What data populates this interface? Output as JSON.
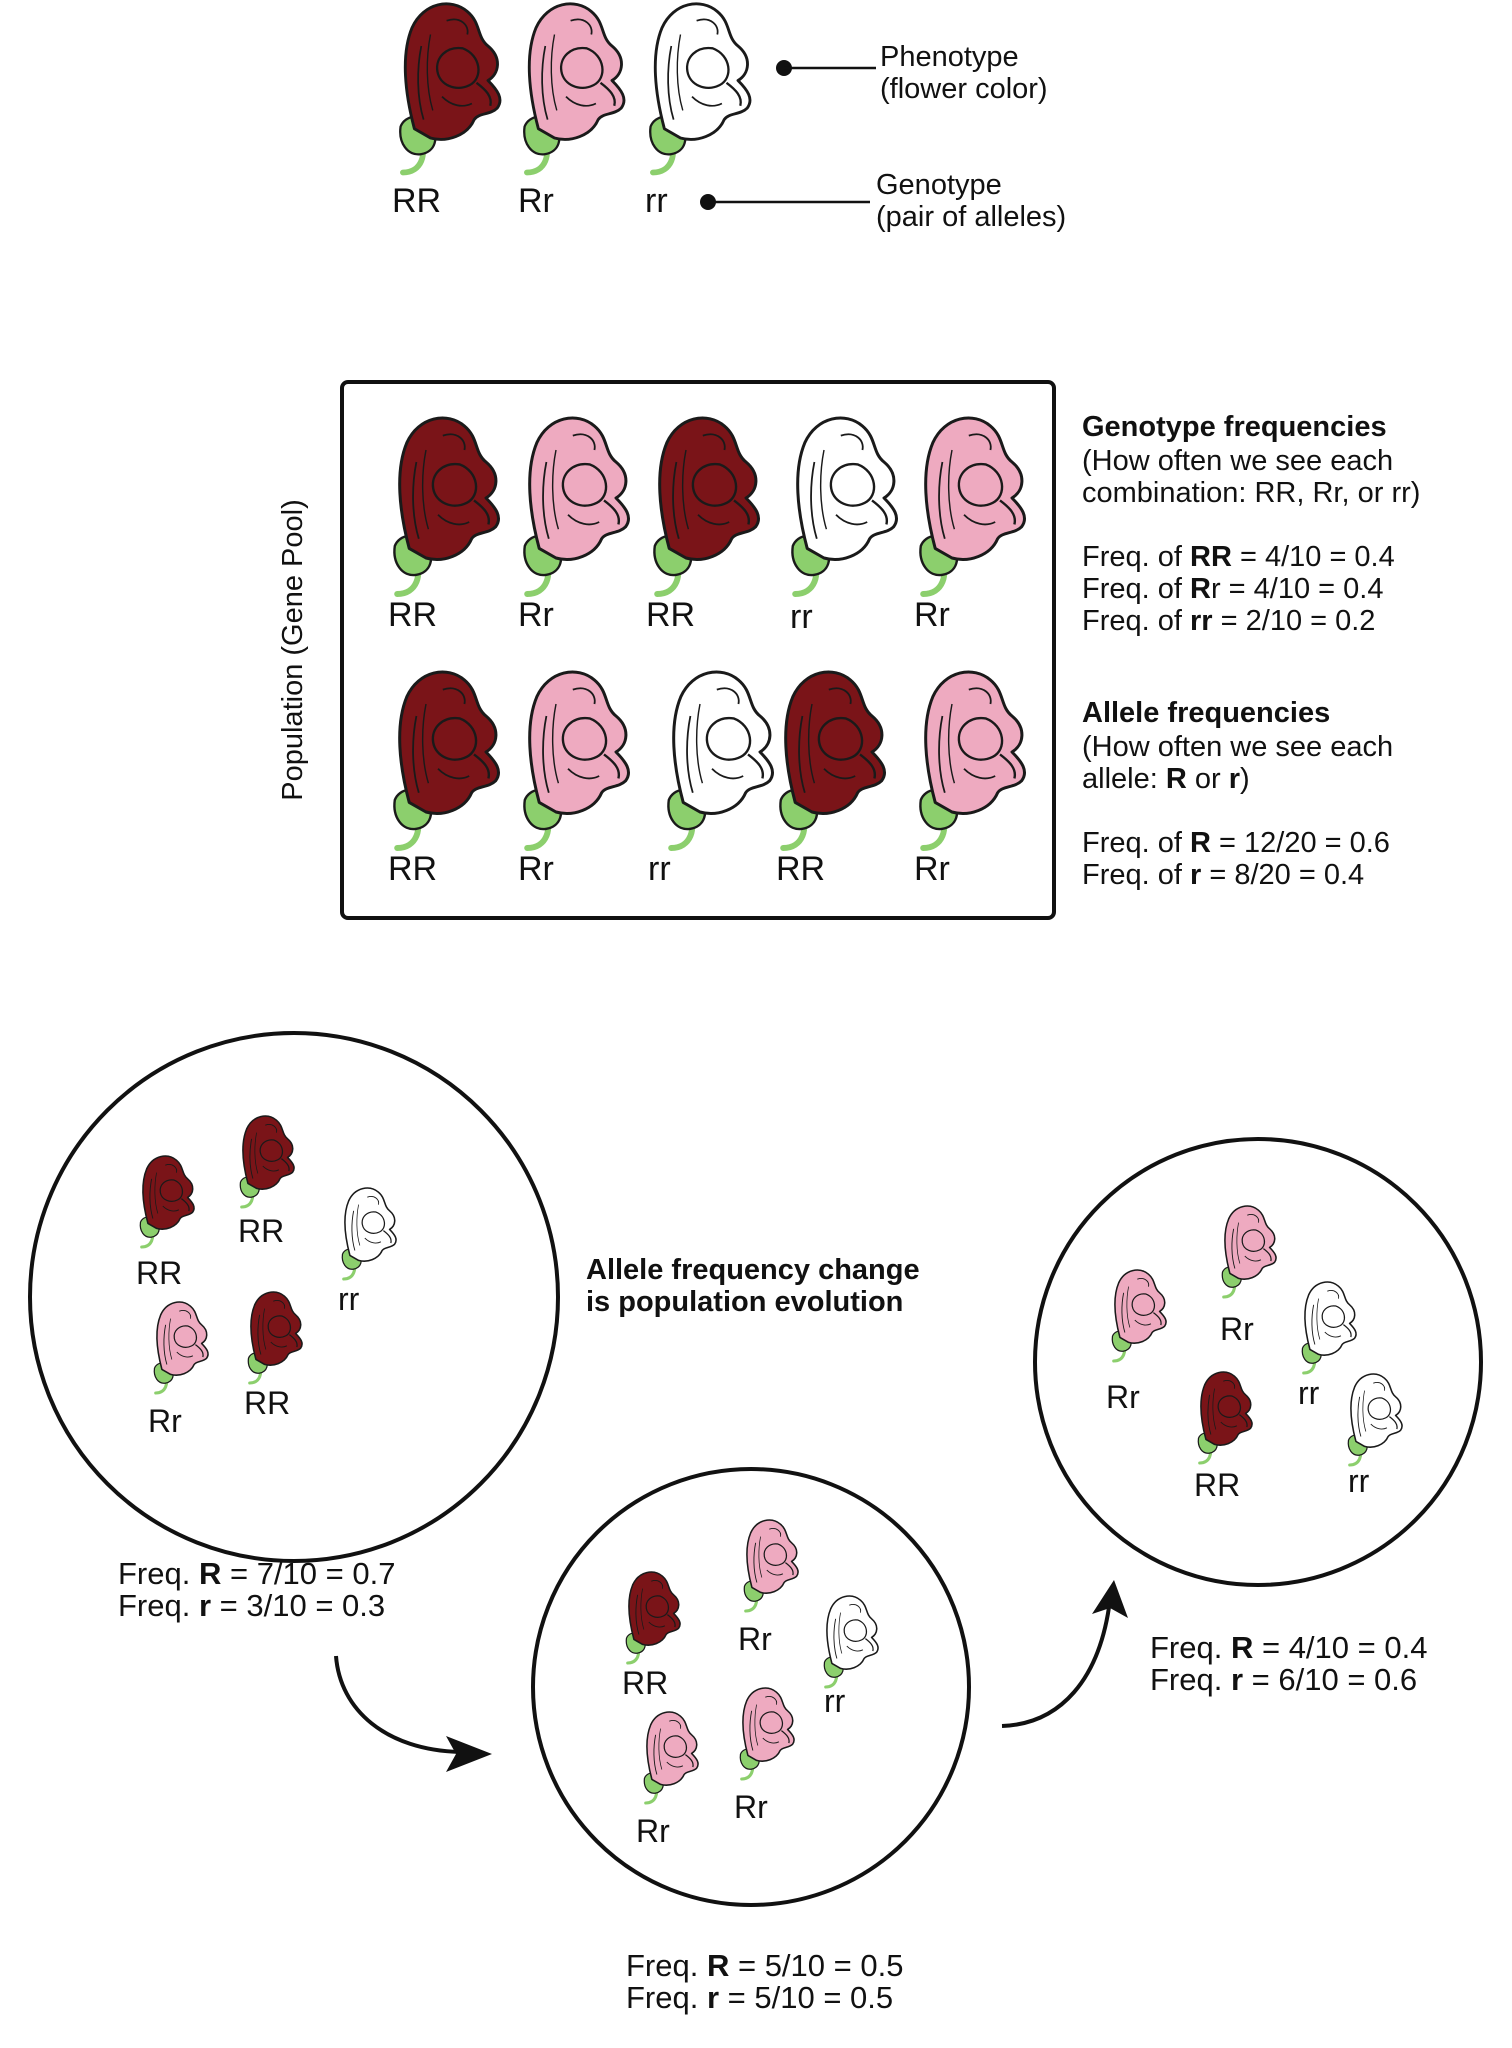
{
  "colors": {
    "red": "#7a1418",
    "pink": "#eeaac0",
    "white": "#ffffff",
    "stem": "#8ccf6d",
    "line": "#111111"
  },
  "legend": {
    "genotypes": [
      "RR",
      "Rr",
      "rr"
    ],
    "phenotype_line1": "Phenotype",
    "phenotype_line2": "(flower color)",
    "genotype_line1": "Genotype",
    "genotype_line2": "(pair of alleles)"
  },
  "population": {
    "side_label": "Population (Gene Pool)",
    "row1": [
      "RR",
      "Rr",
      "RR",
      "rr",
      "Rr"
    ],
    "row2": [
      "RR",
      "Rr",
      "rr",
      "RR",
      "Rr"
    ]
  },
  "genotype_freq": {
    "heading": "Genotype frequencies",
    "desc1": "(How often we see each",
    "desc2": "combination: RR, Rr, or rr)",
    "lines": [
      {
        "prefix": "Freq. of ",
        "bold": "RR",
        "rest": "",
        "value": " = 4/10 = 0.4"
      },
      {
        "prefix": "Freq. of ",
        "bold": "R",
        "rest": "r",
        "value": " = 4/10 = 0.4"
      },
      {
        "prefix": "Freq. of ",
        "bold": "rr",
        "rest": "",
        "value": " = 2/10 = 0.2"
      }
    ]
  },
  "allele_freq": {
    "heading": "Allele frequencies",
    "desc1": "(How often we see each",
    "desc2_a": "allele: ",
    "desc2_b": "R",
    "desc2_c": " or ",
    "desc2_d": "r",
    "desc2_e": ")",
    "lines": [
      {
        "prefix": "Freq. of ",
        "bold": "R",
        "value": " = 12/20 = 0.6"
      },
      {
        "prefix": "Freq. of ",
        "bold": "r",
        "value": " = 8/20 = 0.4"
      }
    ]
  },
  "evolution": {
    "caption1": "Allele frequency change",
    "caption2": "is population evolution",
    "gen1": {
      "labels": [
        "RR",
        "RR",
        "rr",
        "Rr",
        "RR"
      ],
      "freq": [
        {
          "prefix": "Freq. ",
          "bold": "R",
          "value": " = 7/10 = 0.7"
        },
        {
          "prefix": "Freq. ",
          "bold": "r",
          "value": " = 3/10 = 0.3"
        }
      ]
    },
    "gen2": {
      "labels": [
        "RR",
        "Rr",
        "rr",
        "Rr",
        "Rr"
      ],
      "freq": [
        {
          "prefix": "Freq. ",
          "bold": "R",
          "value": " = 5/10 = 0.5"
        },
        {
          "prefix": "Freq. ",
          "bold": "r",
          "value": " = 5/10 = 0.5"
        }
      ]
    },
    "gen3": {
      "labels": [
        "Rr",
        "Rr",
        "rr",
        "RR",
        "rr"
      ],
      "freq": [
        {
          "prefix": "Freq. ",
          "bold": "R",
          "value": " = 4/10 = 0.4"
        },
        {
          "prefix": "Freq. ",
          "bold": "r",
          "value": " = 6/10 = 0.6"
        }
      ]
    }
  }
}
